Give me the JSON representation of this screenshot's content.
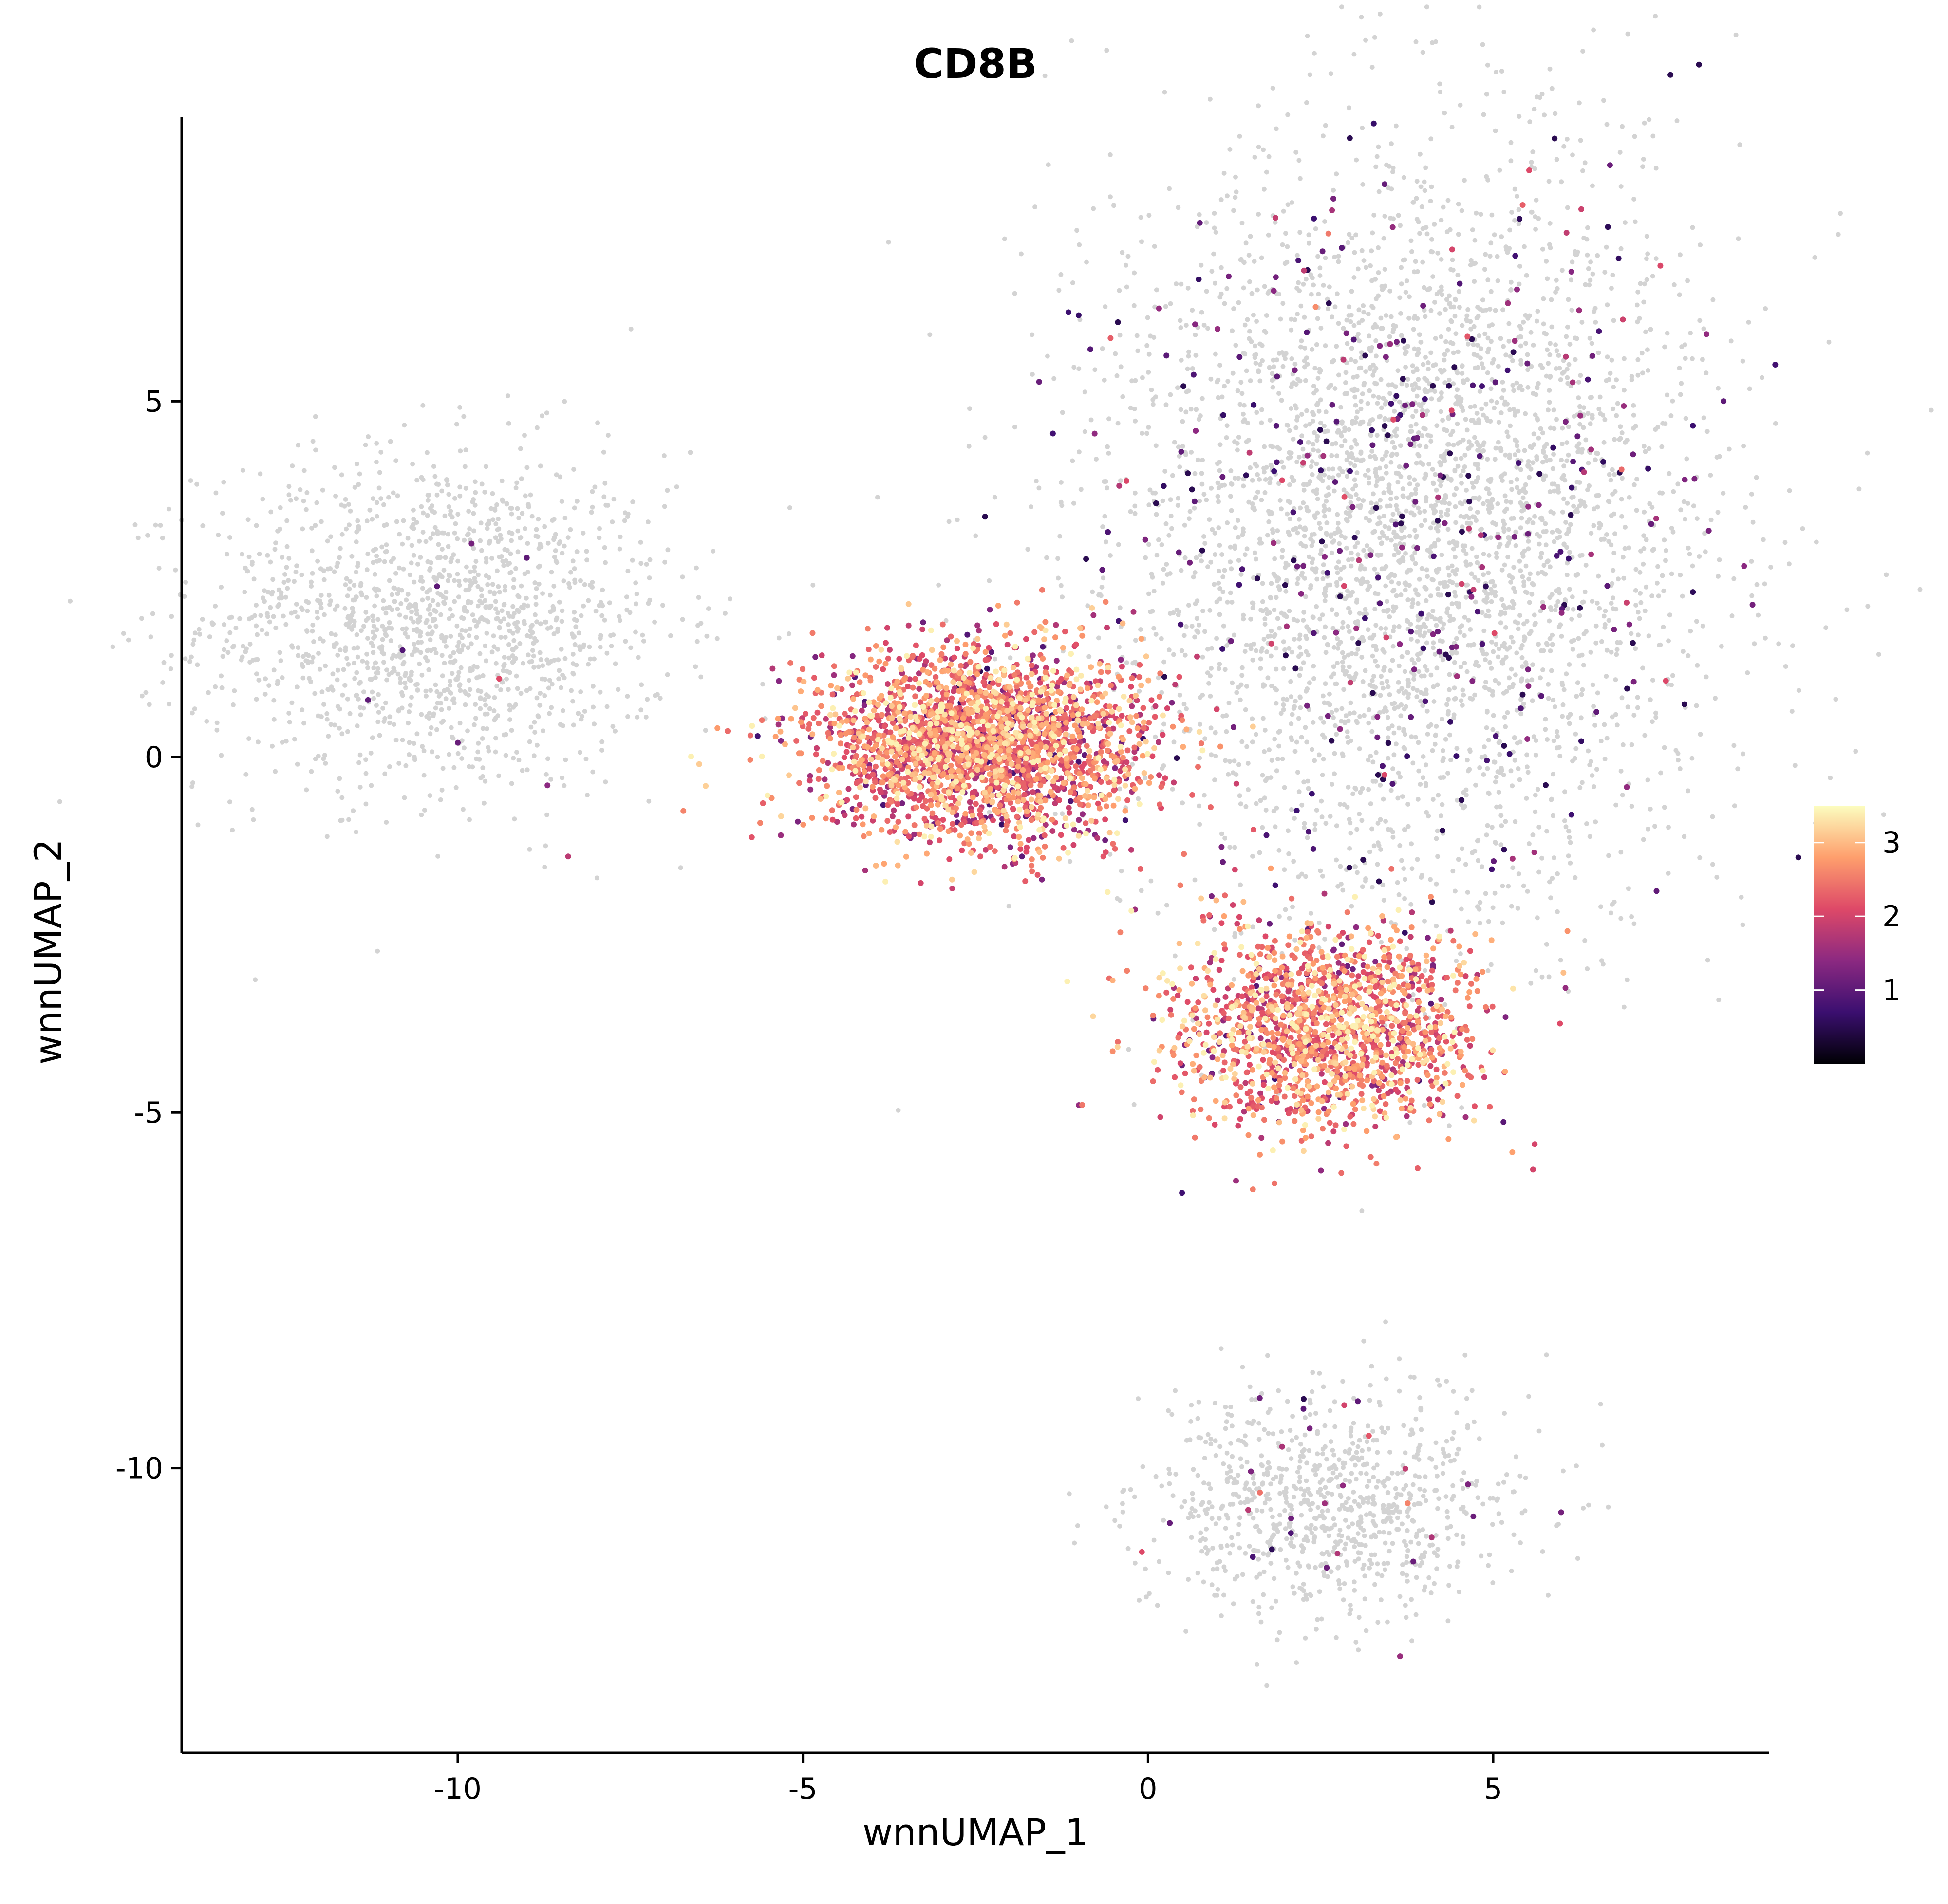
{
  "chart_data": {
    "type": "scatter",
    "title": "CD8B",
    "xlabel": "wnnUMAP_1",
    "ylabel": "wnnUMAP_2",
    "xlim": [
      -14,
      9
    ],
    "ylim": [
      -14,
      9
    ],
    "x_ticks": [
      -10,
      -5,
      0,
      5
    ],
    "x_tick_labels": [
      "-10",
      "-5",
      "0",
      "5"
    ],
    "y_ticks": [
      -10,
      -5,
      0,
      5
    ],
    "y_tick_labels": [
      "-10",
      "-5",
      "0",
      "5"
    ],
    "grid": false,
    "background_color": "#d3d3d3",
    "colorbar": {
      "range": [
        0,
        3.5
      ],
      "ticks": [
        1,
        2,
        3
      ],
      "tick_labels": [
        "1",
        "2",
        "3"
      ],
      "palette": [
        "#000004",
        "#3b0f70",
        "#8c2981",
        "#de4968",
        "#fe9f6d",
        "#fcfdbf"
      ],
      "placement": "right"
    },
    "clusters": [
      {
        "region": "upper-left",
        "cx": -10.3,
        "cy": 1.9,
        "sx": 1.7,
        "sy": 1.2,
        "n": 1500,
        "expressing": [
          {
            "x": -10.3,
            "y": 2.4,
            "v": 1.0
          },
          {
            "x": -9.8,
            "y": 3.0,
            "v": 1.2
          },
          {
            "x": -9.0,
            "y": 2.8,
            "v": 1.0
          },
          {
            "x": -10.8,
            "y": 1.5,
            "v": 0.9
          },
          {
            "x": -8.7,
            "y": -0.4,
            "v": 1.4
          },
          {
            "x": -10.0,
            "y": 0.2,
            "v": 1.1
          },
          {
            "x": -8.4,
            "y": -1.4,
            "v": 1.8
          },
          {
            "x": -11.3,
            "y": 0.8,
            "v": 1.0
          },
          {
            "x": -9.4,
            "y": 1.1,
            "v": 2.1
          }
        ]
      },
      {
        "region": "central-t-cells",
        "cx": -2.4,
        "cy": 0.2,
        "sx": 1.2,
        "sy": 0.65,
        "n": 2600,
        "expr": 2.4
      },
      {
        "region": "lower-t-cells",
        "cx": 2.6,
        "cy": -3.8,
        "sx": 1.1,
        "sy": 0.7,
        "n": 1600,
        "expr": 2.5
      },
      {
        "region": "upper-right",
        "cx": 3.8,
        "cy": 3.2,
        "sx": 2.2,
        "sy": 2.7,
        "n": 4200,
        "expr_frac": 0.08,
        "expr": 1.0
      },
      {
        "region": "bottom",
        "cx": 2.6,
        "cy": -10.5,
        "sx": 1.3,
        "sy": 0.8,
        "n": 900,
        "expr_frac": 0.03,
        "expr": 1.4
      }
    ]
  }
}
